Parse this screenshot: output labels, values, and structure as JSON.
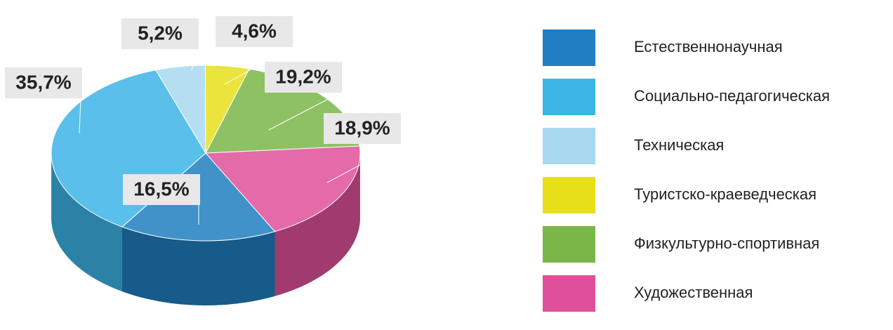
{
  "chart_data": {
    "type": "pie",
    "categories": [
      "Естественнонаучная",
      "Социально-педагогическая",
      "Техническая",
      "Туристско-краеведческая",
      "Физкультурно-спортивная",
      "Художественная"
    ],
    "values": [
      16.5,
      35.7,
      5.2,
      4.6,
      19.2,
      18.9
    ],
    "value_labels": [
      "16,5%",
      "35,7%",
      "5,2%",
      "4,6%",
      "19,2%",
      "18,9%"
    ],
    "colors": [
      "#1f7fc0",
      "#3db4e6",
      "#a8d8f0",
      "#e6df1a",
      "#7ab648",
      "#e0509a"
    ],
    "legend": "right"
  }
}
